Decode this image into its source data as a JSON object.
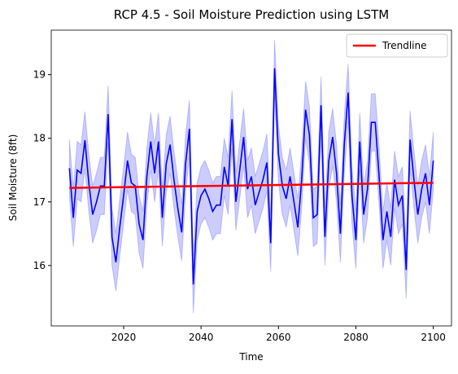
{
  "chart_data": {
    "type": "line",
    "title": "RCP 4.5 - Soil Moisture Prediction using LSTM",
    "x_label": "Time",
    "y_label": "Soil Moisture (8ft)",
    "x": [
      2006,
      2007,
      2008,
      2009,
      2010,
      2011,
      2012,
      2013,
      2014,
      2015,
      2016,
      2017,
      2018,
      2019,
      2020,
      2021,
      2022,
      2023,
      2024,
      2025,
      2026,
      2027,
      2028,
      2029,
      2030,
      2031,
      2032,
      2033,
      2034,
      2035,
      2036,
      2037,
      2038,
      2039,
      2040,
      2041,
      2042,
      2043,
      2044,
      2045,
      2046,
      2047,
      2048,
      2049,
      2050,
      2051,
      2052,
      2053,
      2054,
      2055,
      2056,
      2057,
      2058,
      2059,
      2060,
      2061,
      2062,
      2063,
      2064,
      2065,
      2066,
      2067,
      2068,
      2069,
      2070,
      2071,
      2072,
      2073,
      2074,
      2075,
      2076,
      2077,
      2078,
      2079,
      2080,
      2081,
      2082,
      2083,
      2084,
      2085,
      2086,
      2087,
      2088,
      2089,
      2090,
      2091,
      2092,
      2093,
      2094,
      2095,
      2096,
      2097,
      2098,
      2099,
      2100
    ],
    "series": [
      {
        "color": "#0000ff",
        "band_color": "#0000ff",
        "values": [
          17.53,
          16.75,
          17.5,
          17.45,
          17.97,
          17.3,
          16.8,
          17.0,
          17.25,
          17.25,
          18.38,
          16.45,
          16.05,
          16.6,
          17.1,
          17.65,
          17.3,
          17.25,
          16.65,
          16.4,
          17.4,
          17.95,
          17.45,
          17.95,
          16.75,
          17.6,
          17.9,
          17.35,
          16.9,
          16.52,
          17.6,
          18.15,
          15.7,
          16.85,
          17.1,
          17.2,
          17.05,
          16.85,
          16.95,
          16.95,
          17.55,
          17.25,
          18.3,
          17.0,
          17.5,
          18.02,
          17.2,
          17.4,
          16.95,
          17.15,
          17.35,
          17.62,
          16.35,
          19.1,
          17.75,
          17.25,
          17.05,
          17.4,
          17.0,
          16.6,
          17.35,
          18.45,
          18.05,
          16.75,
          16.8,
          18.52,
          16.45,
          17.65,
          18.02,
          17.45,
          16.5,
          17.9,
          18.72,
          17.1,
          16.4,
          17.95,
          16.8,
          17.2,
          18.25,
          18.25,
          17.4,
          16.4,
          16.85,
          16.45,
          17.35,
          16.95,
          17.1,
          15.93,
          17.98,
          17.35,
          16.8,
          17.2,
          17.45,
          16.95,
          17.65
        ],
        "lower": [
          17.08,
          16.3,
          17.05,
          17.0,
          17.52,
          16.85,
          16.35,
          16.55,
          16.8,
          16.8,
          17.93,
          16.0,
          15.6,
          16.15,
          16.65,
          17.2,
          16.85,
          16.8,
          16.2,
          15.95,
          16.95,
          17.5,
          17.0,
          17.5,
          16.3,
          17.15,
          17.45,
          16.9,
          16.45,
          16.07,
          17.15,
          17.7,
          15.25,
          16.4,
          16.65,
          16.75,
          16.6,
          16.4,
          16.5,
          16.5,
          17.1,
          16.8,
          17.85,
          16.55,
          17.05,
          17.57,
          16.75,
          16.95,
          16.5,
          16.7,
          16.9,
          17.17,
          15.9,
          18.65,
          17.3,
          16.8,
          16.6,
          16.95,
          16.55,
          16.15,
          16.9,
          18.0,
          17.6,
          16.3,
          16.35,
          18.07,
          16.0,
          17.2,
          17.57,
          17.0,
          16.05,
          17.45,
          18.27,
          16.65,
          15.95,
          17.5,
          16.35,
          16.75,
          17.8,
          17.8,
          16.95,
          15.95,
          16.4,
          16.0,
          16.9,
          16.5,
          16.65,
          15.48,
          17.53,
          16.9,
          16.35,
          16.75,
          17.0,
          16.5,
          17.2
        ],
        "upper": [
          17.98,
          17.2,
          17.95,
          17.9,
          18.42,
          17.75,
          17.25,
          17.45,
          17.7,
          17.7,
          18.83,
          16.9,
          16.5,
          17.05,
          17.55,
          18.1,
          17.75,
          17.7,
          17.1,
          16.85,
          17.85,
          18.4,
          17.9,
          18.4,
          17.2,
          18.05,
          18.35,
          17.8,
          17.35,
          16.97,
          18.05,
          18.6,
          16.15,
          17.3,
          17.55,
          17.65,
          17.5,
          17.3,
          17.4,
          17.4,
          18.0,
          17.7,
          18.75,
          17.45,
          17.95,
          18.47,
          17.65,
          17.85,
          17.4,
          17.6,
          17.8,
          18.07,
          16.8,
          19.55,
          18.2,
          17.7,
          17.5,
          17.85,
          17.45,
          17.05,
          17.8,
          18.9,
          18.5,
          17.2,
          17.25,
          18.97,
          16.9,
          18.1,
          18.47,
          17.9,
          16.95,
          18.35,
          19.17,
          17.55,
          16.85,
          18.4,
          17.25,
          17.65,
          18.7,
          18.7,
          17.85,
          16.85,
          17.3,
          16.9,
          17.8,
          17.4,
          17.55,
          16.38,
          18.43,
          17.8,
          17.25,
          17.65,
          17.9,
          17.4,
          18.1
        ]
      },
      {
        "name": "Trendline",
        "color": "#ff0000",
        "x": [
          2006,
          2100
        ],
        "values": [
          17.22,
          17.3
        ]
      }
    ],
    "xlim": [
      2001.3,
      2104.7
    ],
    "xticks": [
      2020,
      2040,
      2060,
      2080,
      2100
    ],
    "ylim": [
      15.05,
      19.7
    ],
    "yticks": [
      16,
      17,
      18,
      19
    ],
    "legend": "upper right"
  }
}
